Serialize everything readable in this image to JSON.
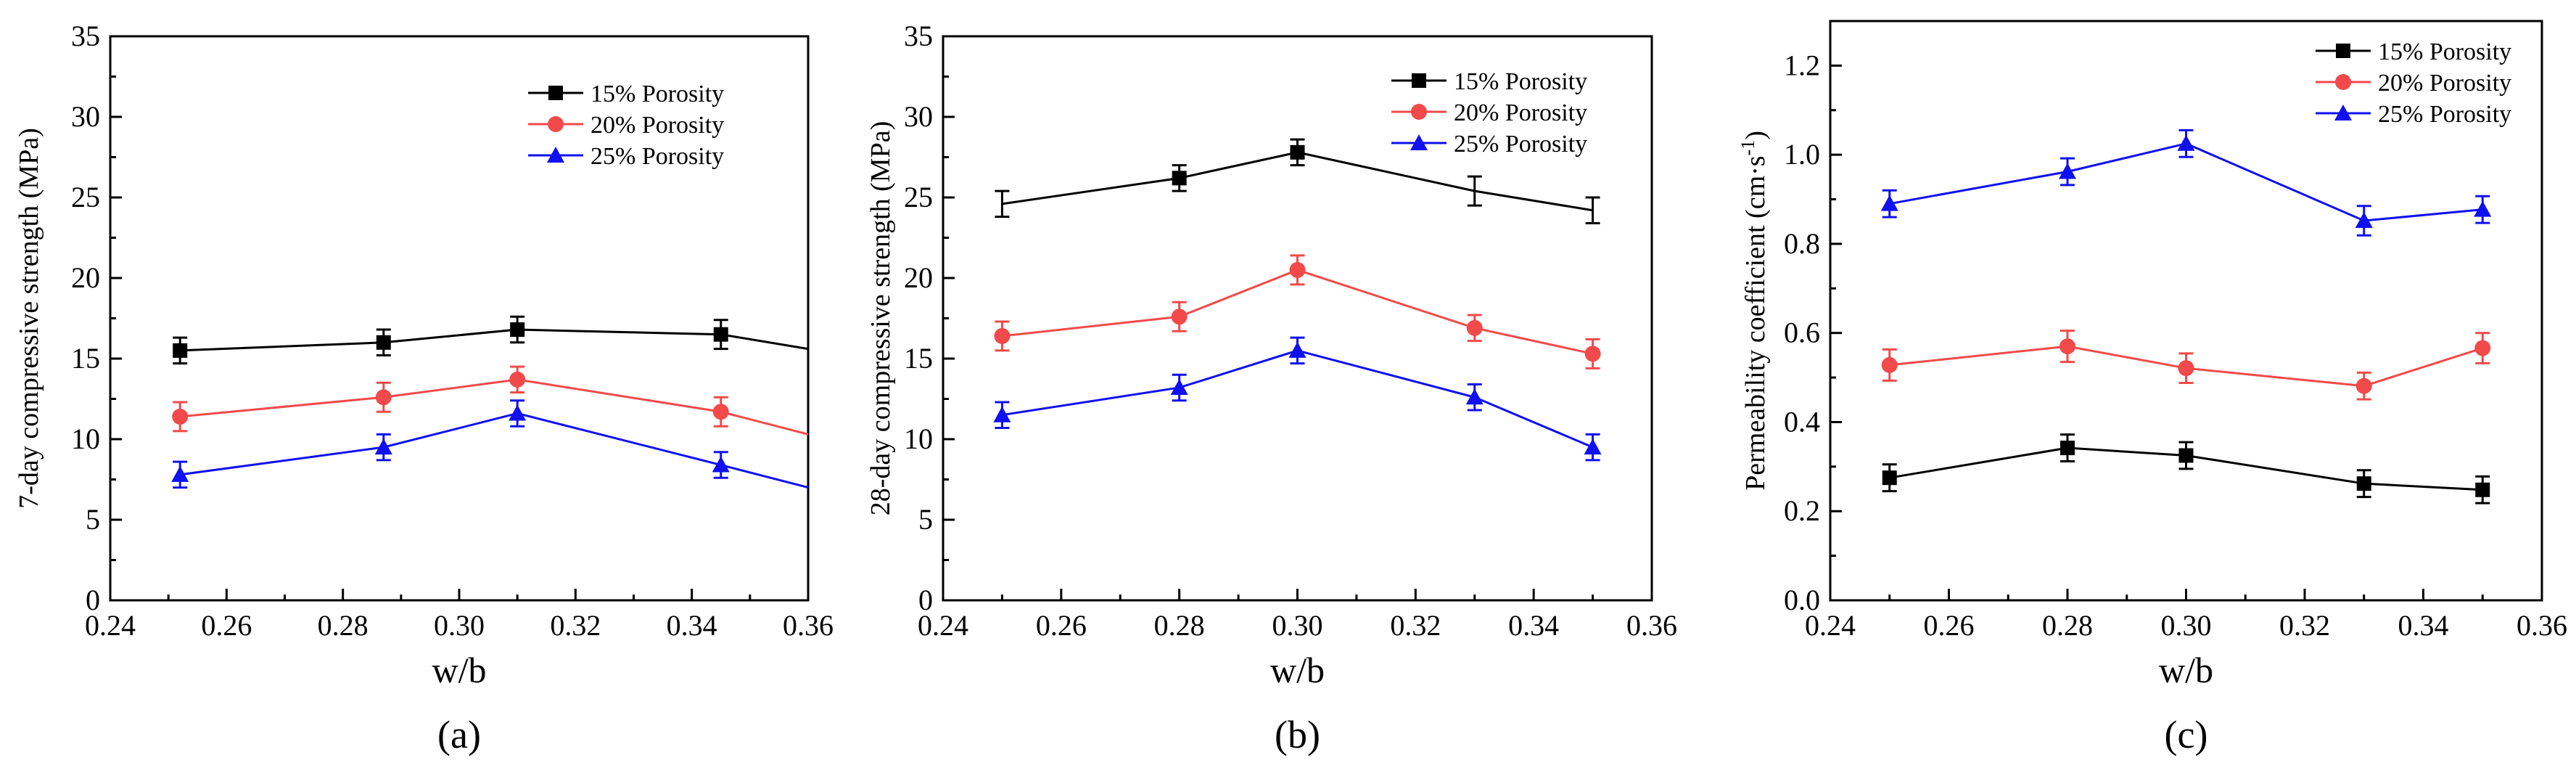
{
  "chart_data": [
    {
      "type": "line",
      "panel_label": "(a)",
      "xlabel": "w/b",
      "ylabel": "7-day compressive strength (MPa)",
      "xlim": [
        0.24,
        0.36
      ],
      "ylim": [
        0,
        35
      ],
      "xticks": [
        "0.24",
        "0.26",
        "0.28",
        "0.30",
        "0.32",
        "0.34",
        "0.36"
      ],
      "yticks": [
        "0",
        "5",
        "10",
        "15",
        "20",
        "25",
        "30",
        "35"
      ],
      "grid": false,
      "legend_position": "top-right",
      "series": [
        {
          "name": "15% Porosity",
          "color": "#000000",
          "marker": "square",
          "x": [
            0.252,
            0.287,
            0.31,
            0.345,
            0.36
          ],
          "y": [
            15.5,
            16.0,
            16.8,
            16.5,
            15.6
          ],
          "error": [
            0.8,
            0.8,
            0.8,
            0.9,
            null
          ]
        },
        {
          "name": "20% Porosity",
          "color": "#f24a4a",
          "marker": "circle",
          "x": [
            0.252,
            0.287,
            0.31,
            0.345,
            0.36
          ],
          "y": [
            11.4,
            12.6,
            13.7,
            11.7,
            10.3
          ],
          "error": [
            0.9,
            0.9,
            0.8,
            0.9,
            null
          ]
        },
        {
          "name": "25% Porosity",
          "color": "#1010f0",
          "marker": "triangle",
          "x": [
            0.252,
            0.287,
            0.31,
            0.345,
            0.36
          ],
          "y": [
            7.8,
            9.5,
            11.6,
            8.4,
            7.0
          ],
          "error": [
            0.8,
            0.8,
            0.8,
            0.8,
            null
          ]
        }
      ]
    },
    {
      "type": "line",
      "panel_label": "(b)",
      "xlabel": "w/b",
      "ylabel": "28-day compressive strength (MPa)",
      "xlim": [
        0.24,
        0.36
      ],
      "ylim": [
        0,
        35
      ],
      "xticks": [
        "0.24",
        "0.26",
        "0.28",
        "0.30",
        "0.32",
        "0.34",
        "0.36"
      ],
      "yticks": [
        "0",
        "5",
        "10",
        "15",
        "20",
        "25",
        "30",
        "35"
      ],
      "grid": false,
      "legend_position": "top-right",
      "series": [
        {
          "name": "15% Porosity",
          "color": "#000000",
          "marker": "square",
          "hidden_markers": [
            0,
            3,
            4
          ],
          "x": [
            0.25,
            0.28,
            0.3,
            0.33,
            0.35
          ],
          "y": [
            24.6,
            26.2,
            27.8,
            25.4,
            24.2
          ],
          "error": [
            0.8,
            0.8,
            0.8,
            0.9,
            0.8
          ]
        },
        {
          "name": "20% Porosity",
          "color": "#f24a4a",
          "marker": "circle",
          "x": [
            0.25,
            0.28,
            0.3,
            0.33,
            0.35
          ],
          "y": [
            16.4,
            17.6,
            20.5,
            16.9,
            15.3
          ],
          "error": [
            0.9,
            0.9,
            0.9,
            0.8,
            0.9
          ]
        },
        {
          "name": "25% Porosity",
          "color": "#1010f0",
          "marker": "triangle",
          "x": [
            0.25,
            0.28,
            0.3,
            0.33,
            0.35
          ],
          "y": [
            11.5,
            13.2,
            15.5,
            12.6,
            9.5
          ],
          "error": [
            0.8,
            0.8,
            0.8,
            0.8,
            0.8
          ]
        }
      ]
    },
    {
      "type": "line",
      "panel_label": "(c)",
      "xlabel": "w/b",
      "ylabel": "Permeability coefficient (cm·s",
      "ylabel_sup": "-1",
      "ylabel_end": ")",
      "xlim": [
        0.24,
        0.36
      ],
      "ylim": [
        0,
        1.3
      ],
      "xticks": [
        "0.24",
        "0.26",
        "0.28",
        "0.30",
        "0.32",
        "0.34",
        "0.36"
      ],
      "yticks": [
        "0.0",
        "0.2",
        "0.4",
        "0.6",
        "0.8",
        "1.0",
        "1.2"
      ],
      "grid": false,
      "legend_position": "top-right",
      "series": [
        {
          "name": "15% Porosity",
          "color": "#000000",
          "marker": "square",
          "x": [
            0.25,
            0.28,
            0.3,
            0.33,
            0.35
          ],
          "y": [
            0.275,
            0.342,
            0.325,
            0.262,
            0.248
          ],
          "error": [
            0.03,
            0.03,
            0.03,
            0.03,
            0.03
          ]
        },
        {
          "name": "20% Porosity",
          "color": "#f24a4a",
          "marker": "circle",
          "x": [
            0.25,
            0.28,
            0.3,
            0.33,
            0.35
          ],
          "y": [
            0.528,
            0.57,
            0.521,
            0.481,
            0.566
          ],
          "error": [
            0.035,
            0.035,
            0.033,
            0.03,
            0.034
          ]
        },
        {
          "name": "25% Porosity",
          "color": "#1010f0",
          "marker": "triangle",
          "x": [
            0.25,
            0.28,
            0.3,
            0.33,
            0.35
          ],
          "y": [
            0.89,
            0.962,
            1.025,
            0.852,
            0.877
          ],
          "error": [
            0.03,
            0.03,
            0.03,
            0.033,
            0.03
          ]
        }
      ]
    }
  ]
}
